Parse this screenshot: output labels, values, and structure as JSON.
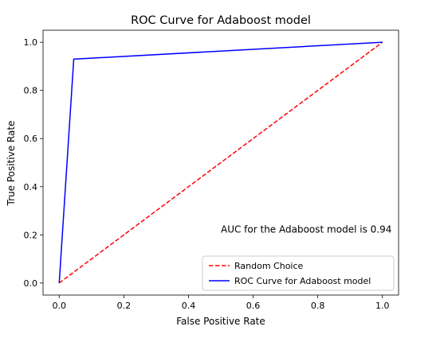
{
  "chart_data": {
    "type": "line",
    "title": "ROC Curve for Adaboost model",
    "xlabel": "False Positive Rate",
    "ylabel": "True Positive Rate",
    "xlim": [
      -0.05,
      1.05
    ],
    "ylim": [
      -0.05,
      1.05
    ],
    "xticks": [
      0.0,
      0.2,
      0.4,
      0.6,
      0.8,
      1.0
    ],
    "yticks": [
      0.0,
      0.2,
      0.4,
      0.6,
      0.8,
      1.0
    ],
    "xtick_labels": [
      "0.0",
      "0.2",
      "0.4",
      "0.6",
      "0.8",
      "1.0"
    ],
    "ytick_labels": [
      "0.0",
      "0.2",
      "0.4",
      "0.6",
      "0.8",
      "1.0"
    ],
    "grid": false,
    "legend_position": "lower-right",
    "series": [
      {
        "name": "Random Choice",
        "color": "#ff0000",
        "style": "dashed",
        "x": [
          0.0,
          1.0
        ],
        "y": [
          0.0,
          1.0
        ]
      },
      {
        "name": "ROC Curve for Adaboost model",
        "color": "#0000ff",
        "style": "solid",
        "x": [
          0.0,
          0.045,
          1.0
        ],
        "y": [
          0.0,
          0.93,
          1.0
        ]
      }
    ],
    "annotation": {
      "text": "AUC for the Adaboost model is 0.94",
      "x": 0.5,
      "y": 0.21
    }
  }
}
